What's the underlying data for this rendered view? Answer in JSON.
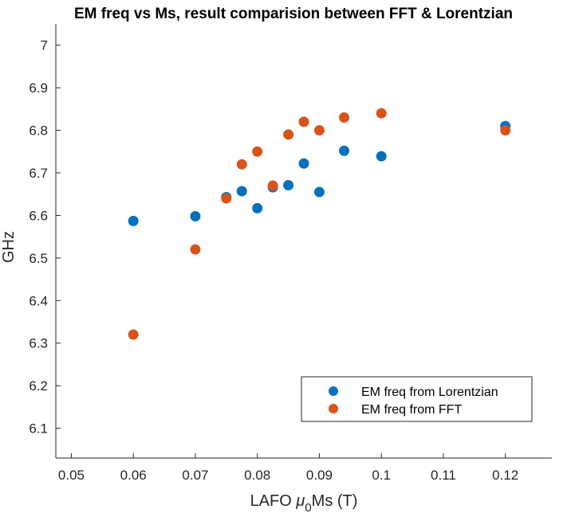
{
  "chart_data": {
    "type": "scatter",
    "title": "EM freq vs Ms, result comparision between FFT & Lorentzian",
    "xlabel": {
      "prefix": "LAFO ",
      "symbol": "μ",
      "sub": "0",
      "suffix": "Ms (T)"
    },
    "ylabel": "GHz",
    "xlim": [
      0.0475,
      0.1275
    ],
    "ylim": [
      6.03,
      7.05
    ],
    "xticks": [
      0.05,
      0.06,
      0.07,
      0.08,
      0.09,
      0.1,
      0.11,
      0.12
    ],
    "xtick_labels": [
      "0.05",
      "0.06",
      "0.07",
      "0.08",
      "0.09",
      "0.1",
      "0.11",
      "0.12"
    ],
    "yticks": [
      6.1,
      6.2,
      6.3,
      6.4,
      6.5,
      6.6,
      6.7,
      6.8,
      6.9,
      7.0
    ],
    "ytick_labels": [
      "6.1",
      "6.2",
      "6.3",
      "6.4",
      "6.5",
      "6.6",
      "6.7",
      "6.8",
      "6.9",
      "7"
    ],
    "grid": false,
    "legend_position": "bottom-right",
    "series": [
      {
        "name": "EM freq from Lorentzian",
        "color": "#0072BD",
        "x": [
          0.06,
          0.07,
          0.075,
          0.0775,
          0.08,
          0.0825,
          0.085,
          0.0875,
          0.09,
          0.094,
          0.1,
          0.12
        ],
        "y": [
          6.587,
          6.598,
          6.643,
          6.657,
          6.617,
          6.666,
          6.671,
          6.722,
          6.655,
          6.752,
          6.739,
          6.81
        ]
      },
      {
        "name": "EM freq from FFT",
        "color": "#D95319",
        "x": [
          0.06,
          0.07,
          0.075,
          0.0775,
          0.08,
          0.0825,
          0.085,
          0.0875,
          0.09,
          0.094,
          0.1,
          0.12
        ],
        "y": [
          6.32,
          6.52,
          6.64,
          6.72,
          6.75,
          6.67,
          6.79,
          6.82,
          6.8,
          6.83,
          6.84,
          6.8
        ]
      }
    ]
  }
}
